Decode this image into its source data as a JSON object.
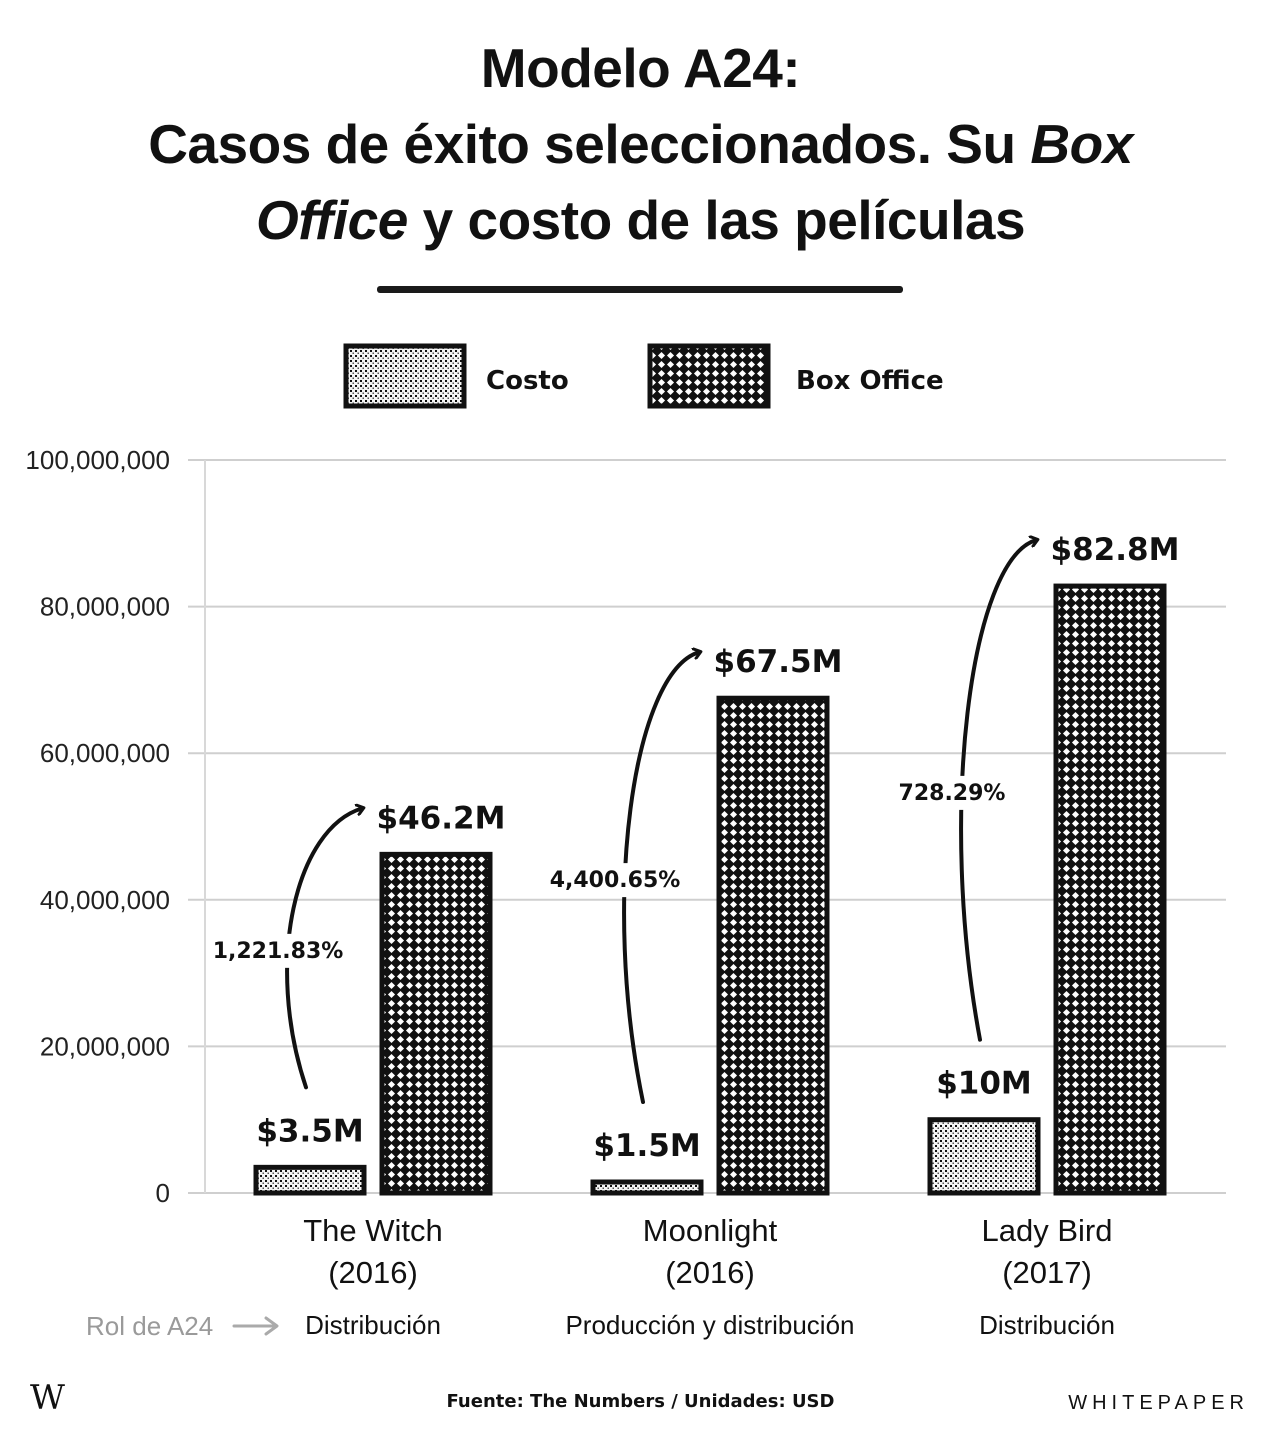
{
  "title": {
    "line1": "Modelo A24:",
    "line2_start": "Casos de éxito seleccionados. Su ",
    "line2_italic": "Box",
    "line3_italic": "Office",
    "line3_end": " y costo de las películas"
  },
  "role_label": "Rol de A24",
  "source": "Fuente: The Numbers / Unidades: USD",
  "brand": "WHITEPAPER",
  "logo": "W",
  "colors": {
    "ink": "#111111",
    "grid": "#cccccc",
    "muted": "#9a9a9a"
  },
  "chart_data": {
    "type": "bar",
    "categories": [
      "The Witch (2016)",
      "Moonlight (2016)",
      "Lady Bird (2017)"
    ],
    "category_lines": [
      [
        "The Witch",
        "(2016)"
      ],
      [
        "Moonlight",
        "(2016)"
      ],
      [
        "Lady Bird",
        "(2017)"
      ]
    ],
    "roles": [
      "Distribución",
      "Producción y distribución",
      "Distribución"
    ],
    "series": [
      {
        "name": "Costo",
        "values": [
          3500000,
          1500000,
          10000000
        ],
        "labels": [
          "$3.5M",
          "$1.5M",
          "$10M"
        ],
        "pattern": "dots"
      },
      {
        "name": "Box Office",
        "values": [
          46200000,
          67500000,
          82800000
        ],
        "labels": [
          "$46.2M",
          "$67.5M",
          "$82.8M"
        ],
        "pattern": "crosshatch"
      }
    ],
    "growth_labels": [
      "1,221.83%",
      "4,400.65%",
      "728.29%"
    ],
    "ylim": [
      0,
      100000000
    ],
    "yticks": [
      0,
      20000000,
      40000000,
      60000000,
      80000000,
      100000000
    ],
    "ytick_labels": [
      "0",
      "20,000,000",
      "40,000,000",
      "60,000,000",
      "80,000,000",
      "100,000,000"
    ],
    "grid": true,
    "legend_position": "top-center"
  }
}
